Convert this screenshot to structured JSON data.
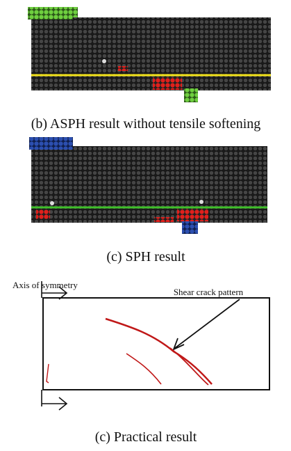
{
  "captions": {
    "asph": "(b) ASPH result without tensile softening",
    "sph": "(c) SPH result",
    "practical": "(c) Practical result"
  },
  "annotations": {
    "axis": "Axis of symmetry",
    "crack": "Shear crack pattern"
  }
}
